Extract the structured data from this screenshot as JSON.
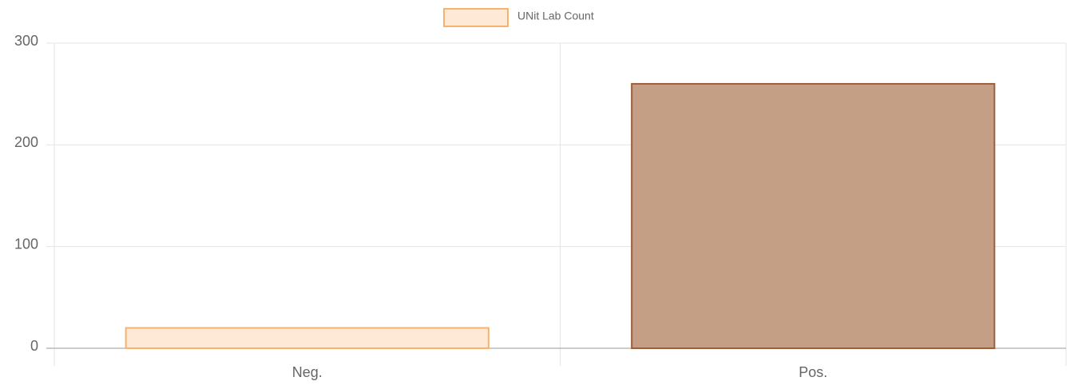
{
  "chart_data": {
    "type": "bar",
    "categories": [
      "Neg.",
      "Pos."
    ],
    "series": [
      {
        "name": "UNit Lab Count",
        "colors": [
          "#fde9d5",
          "#c49e85"
        ],
        "border_colors": [
          "#f7b36e",
          "#9c5f3c"
        ],
        "values": [
          20,
          260
        ]
      }
    ],
    "ylim": [
      0,
      300
    ],
    "yticks": [
      0,
      100,
      200,
      300
    ],
    "grid": true,
    "legend": "top"
  }
}
